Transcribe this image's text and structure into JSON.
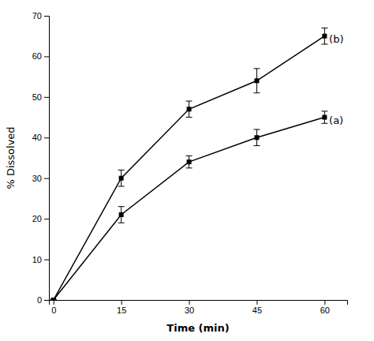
{
  "chart_data": {
    "type": "line",
    "x": [
      0,
      15,
      30,
      45,
      60
    ],
    "series": [
      {
        "color": "#000000",
        "marker": "square",
        "line_style": "solid",
        "values": [
          0,
          30,
          47,
          54,
          65
        ],
        "errors": [
          0,
          2.0,
          2.0,
          3.0,
          2.0
        ]
      },
      {
        "color": "#000000",
        "marker": "square",
        "line_style": "solid",
        "values": [
          0,
          21,
          34,
          40,
          45
        ],
        "errors": [
          0,
          2.0,
          1.5,
          2.0,
          1.5
        ]
      }
    ],
    "annotations": [
      {
        "text": "(b)",
        "x": 61,
        "y": 64
      },
      {
        "text": "(a)",
        "x": 61,
        "y": 44
      }
    ],
    "xlabel": "Time (min)",
    "ylabel": "% Dissolved",
    "xlim": [
      -1,
      65
    ],
    "ylim": [
      0,
      70
    ],
    "xticks": [
      0,
      15,
      30,
      45,
      60
    ],
    "yticks": [
      0,
      10,
      20,
      30,
      40,
      50,
      60,
      70
    ]
  }
}
